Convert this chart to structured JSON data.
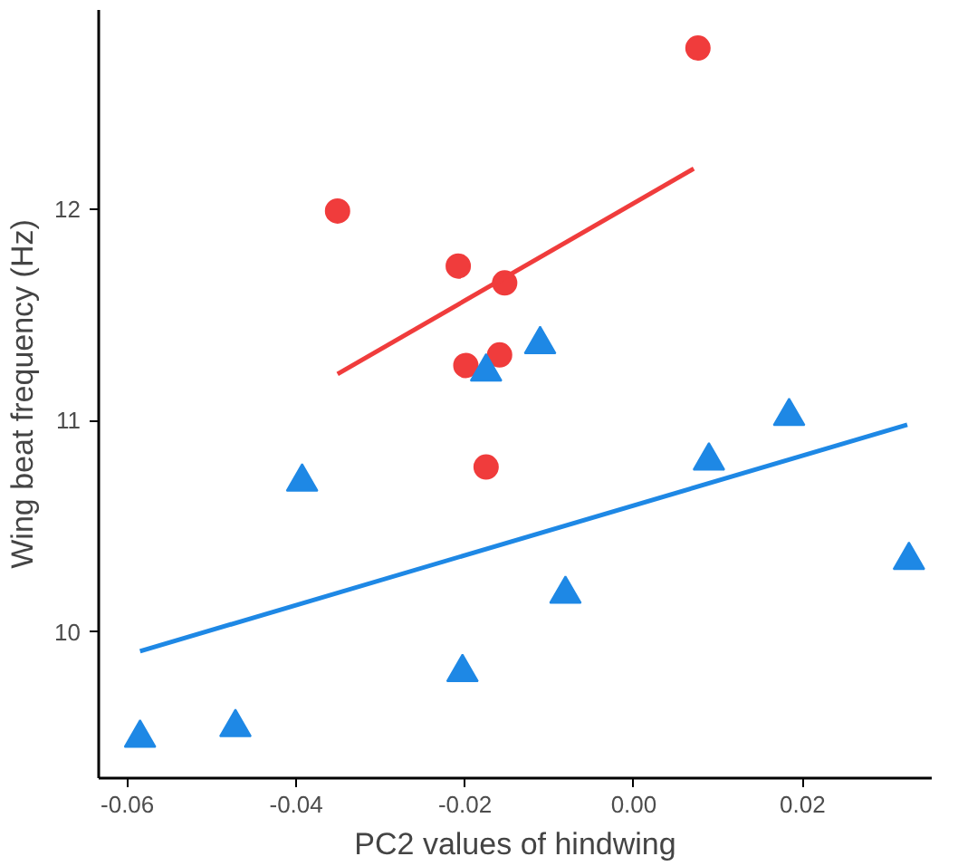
{
  "chart_data": {
    "type": "scatter",
    "xlabel": "PC2 values of hindwing",
    "ylabel": "Wing beat frequency (Hz)",
    "xlim": [
      -0.0634,
      0.0353
    ],
    "ylim": [
      9.31,
      12.94
    ],
    "xticks": [
      {
        "value": -0.06,
        "label": "-0.06"
      },
      {
        "value": -0.04,
        "label": "-0.04"
      },
      {
        "value": -0.02,
        "label": "-0.02"
      },
      {
        "value": 0,
        "label": "0.00"
      },
      {
        "value": 0.02,
        "label": "0.02"
      }
    ],
    "yticks": [
      10,
      11,
      12
    ],
    "grid": false,
    "series": [
      {
        "marker": "circle",
        "color": "#f03c3c",
        "x": [
          -0.0351,
          -0.0208,
          -0.0153,
          -0.0199,
          -0.0159,
          -0.0175,
          0.0076
        ],
        "values": [
          11.99,
          11.73,
          11.65,
          11.26,
          11.31,
          10.78,
          12.76
        ]
      },
      {
        "marker": "triangle",
        "color": "#1e88e5",
        "x": [
          -0.0585,
          -0.0472,
          -0.0393,
          -0.0203,
          -0.0175,
          -0.0111,
          -0.0081,
          0.0089,
          0.0184,
          0.0326
        ],
        "values": [
          9.5,
          9.55,
          10.71,
          9.81,
          11.23,
          11.36,
          10.18,
          10.81,
          11.02,
          10.34
        ]
      },
      {
        "type": "line",
        "line_style": "solid",
        "color": "#f03c3c",
        "x": [
          -0.0351,
          0.0071
        ],
        "values": [
          11.22,
          12.19
        ]
      },
      {
        "type": "line",
        "line_style": "solid",
        "color": "#1e88e5",
        "x": [
          -0.0585,
          0.0324
        ],
        "values": [
          9.91,
          10.98
        ]
      }
    ]
  }
}
